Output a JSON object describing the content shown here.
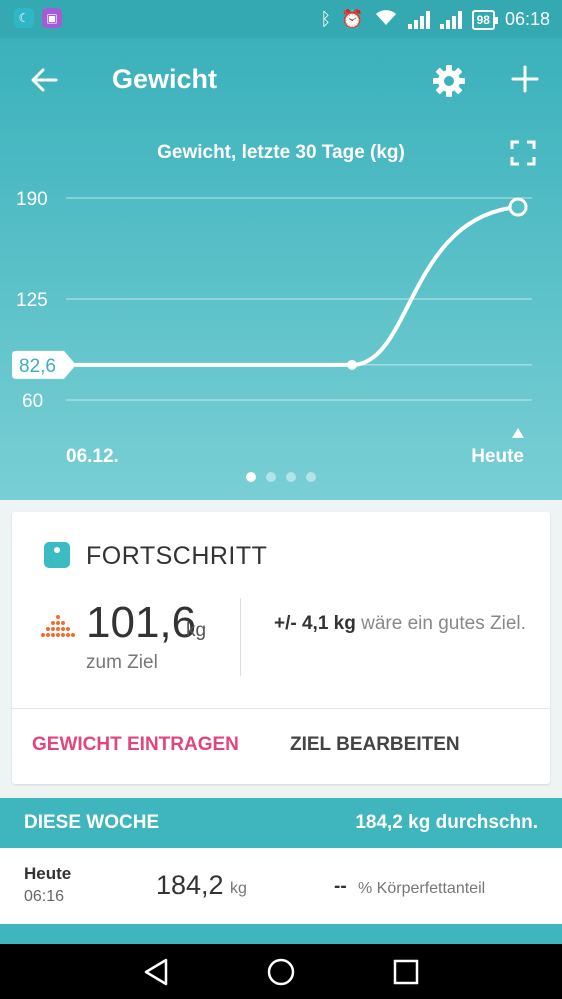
{
  "status_bar": {
    "time": "06:18",
    "battery": "98",
    "app_icons": [
      "moon-app-icon",
      "gallery-app-icon"
    ]
  },
  "header": {
    "title": "Gewicht"
  },
  "chart_title": "Gewicht, letzte 30 Tage (kg)",
  "chart_data": {
    "type": "line",
    "title": "Gewicht, letzte 30 Tage (kg)",
    "x_labels": {
      "start": "06.12.",
      "end": "Heute"
    },
    "y_ticks": [
      190,
      125,
      60
    ],
    "ylim": [
      60,
      190
    ],
    "current_label": "82,6",
    "series": [
      {
        "values": [
          82.6,
          82.6,
          184.2
        ]
      }
    ],
    "grid": true
  },
  "pager": {
    "count": 4,
    "active": 0
  },
  "progress_card": {
    "title": "FORTSCHRITT",
    "value": "101,6",
    "unit": "kg",
    "sub_label": "zum Ziel",
    "hint_prefix": "+/- ",
    "hint_value": "4,1 kg",
    "hint_rest": " wäre ein gutes Ziel.",
    "log_button": "GEWICHT EINTRAGEN",
    "edit_button": "ZIEL BEARBEITEN"
  },
  "week": {
    "label": "DIESE WOCHE",
    "average": "184,2 kg durchschn."
  },
  "entry": {
    "day": "Heute",
    "time": "06:16",
    "value": "184,2",
    "unit": "kg",
    "fat_value": "--",
    "fat_label": "% Körperfettanteil"
  },
  "colors": {
    "teal": "#3fb5bd",
    "pink": "#e2457d",
    "orange": "#f26b2f"
  }
}
